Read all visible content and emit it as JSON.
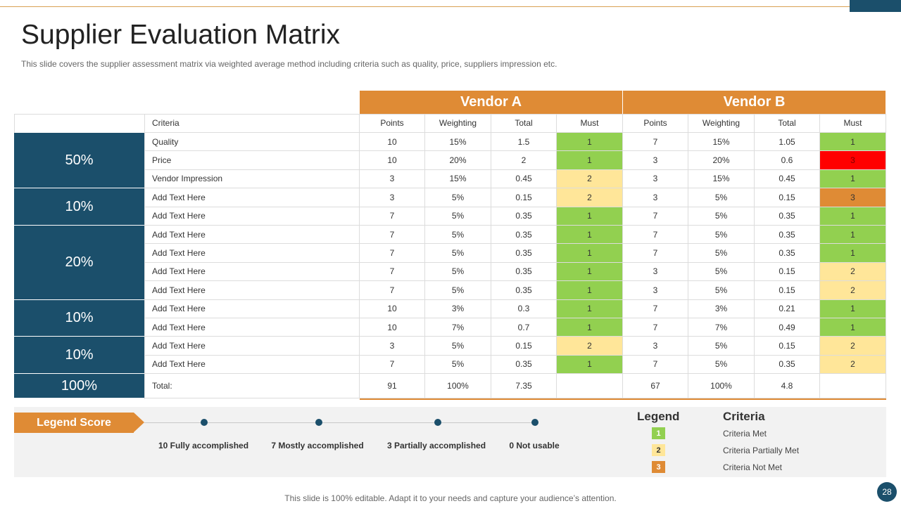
{
  "title": "Supplier Evaluation Matrix",
  "subtitle": "This slide covers the supplier  assessment matrix via weighted average method including criteria such as quality, price, suppliers impression etc.",
  "vendors": [
    "Vendor A",
    "Vendor B"
  ],
  "columns": {
    "criteria": "Criteria",
    "sub": [
      "Points",
      "Weighting",
      "Total",
      "Must",
      "Points",
      "Weighting",
      "Total",
      "Must"
    ]
  },
  "percent_groups": [
    "50%",
    "10%",
    "20%",
    "10%",
    "10%",
    "100%"
  ],
  "rows": [
    {
      "criteria": "Quality",
      "a": [
        "10",
        "15%",
        "1.5",
        "1"
      ],
      "b": [
        "7",
        "15%",
        "1.05",
        "1"
      ],
      "a_must": "met",
      "b_must": "met"
    },
    {
      "criteria": "Price",
      "a": [
        "10",
        "20%",
        "2",
        "1"
      ],
      "b": [
        "3",
        "20%",
        "0.6",
        "3"
      ],
      "a_must": "met",
      "b_must": "fail"
    },
    {
      "criteria": "Vendor Impression",
      "a": [
        "3",
        "15%",
        "0.45",
        "2"
      ],
      "b": [
        "3",
        "15%",
        "0.45",
        "1"
      ],
      "a_must": "partial",
      "b_must": "met"
    },
    {
      "criteria": "Add Text Here",
      "a": [
        "3",
        "5%",
        "0.15",
        "2"
      ],
      "b": [
        "3",
        "5%",
        "0.15",
        "3"
      ],
      "a_must": "partial",
      "b_must": "notmet"
    },
    {
      "criteria": "Add Text Here",
      "a": [
        "7",
        "5%",
        "0.35",
        "1"
      ],
      "b": [
        "7",
        "5%",
        "0.35",
        "1"
      ],
      "a_must": "met",
      "b_must": "met"
    },
    {
      "criteria": "Add Text Here",
      "a": [
        "7",
        "5%",
        "0.35",
        "1"
      ],
      "b": [
        "7",
        "5%",
        "0.35",
        "1"
      ],
      "a_must": "met",
      "b_must": "met"
    },
    {
      "criteria": "Add Text Here",
      "a": [
        "7",
        "5%",
        "0.35",
        "1"
      ],
      "b": [
        "7",
        "5%",
        "0.35",
        "1"
      ],
      "a_must": "met",
      "b_must": "met"
    },
    {
      "criteria": "Add Text Here",
      "a": [
        "7",
        "5%",
        "0.35",
        "1"
      ],
      "b": [
        "3",
        "5%",
        "0.15",
        "2"
      ],
      "a_must": "met",
      "b_must": "partial"
    },
    {
      "criteria": "Add Text Here",
      "a": [
        "7",
        "5%",
        "0.35",
        "1"
      ],
      "b": [
        "3",
        "5%",
        "0.15",
        "2"
      ],
      "a_must": "met",
      "b_must": "partial"
    },
    {
      "criteria": "Add Text Here",
      "a": [
        "10",
        "3%",
        "0.3",
        "1"
      ],
      "b": [
        "7",
        "3%",
        "0.21",
        "1"
      ],
      "a_must": "met",
      "b_must": "met"
    },
    {
      "criteria": "Add Text Here",
      "a": [
        "10",
        "7%",
        "0.7",
        "1"
      ],
      "b": [
        "7",
        "7%",
        "0.49",
        "1"
      ],
      "a_must": "met",
      "b_must": "met"
    },
    {
      "criteria": "Add Text Here",
      "a": [
        "3",
        "5%",
        "0.15",
        "2"
      ],
      "b": [
        "3",
        "5%",
        "0.15",
        "2"
      ],
      "a_must": "partial",
      "b_must": "partial"
    },
    {
      "criteria": "Add Text Here",
      "a": [
        "7",
        "5%",
        "0.35",
        "1"
      ],
      "b": [
        "7",
        "5%",
        "0.35",
        "2"
      ],
      "a_must": "met",
      "b_must": "partial"
    }
  ],
  "total_row": {
    "criteria": "Total:",
    "a": [
      "91",
      "100%",
      "7.35",
      ""
    ],
    "b": [
      "67",
      "100%",
      "4.8",
      ""
    ]
  },
  "legend_score": {
    "label": "Legend Score",
    "items": [
      "10 Fully  accomplished",
      "7 Mostly accomplished",
      "3 Partially accomplished",
      "0 Not usable"
    ]
  },
  "legend": {
    "heading": "Legend",
    "criteria_heading": "Criteria",
    "items": [
      {
        "code": "1",
        "text": "Criteria Met",
        "status": "met"
      },
      {
        "code": "2",
        "text": "Criteria Partially Met",
        "status": "partial"
      },
      {
        "code": "3",
        "text": "Criteria Not Met",
        "status": "notmet"
      }
    ]
  },
  "colors": {
    "met": "#92d050",
    "partial": "#ffe699",
    "notmet": "#df8b35",
    "fail": "#ff0000",
    "accent": "#df8b35",
    "navy": "#1b4f6b"
  },
  "footer": "This slide is 100% editable. Adapt it to your needs and capture your audience’s attention.",
  "page_number": "28"
}
